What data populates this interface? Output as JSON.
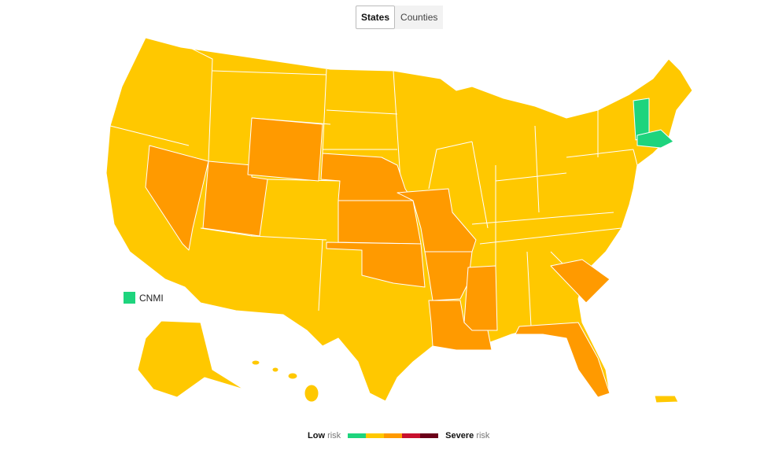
{
  "tabs": [
    "States",
    "Counties"
  ],
  "cnmi_label": "CNMI",
  "legend": {
    "low": "Low",
    "low_suffix": "risk",
    "high": "Severe",
    "high_suffix": "risk",
    "colors": [
      "#1ed47d",
      "#ffc800",
      "#ff9a00",
      "#c8102e",
      "#6b0019"
    ]
  }
}
